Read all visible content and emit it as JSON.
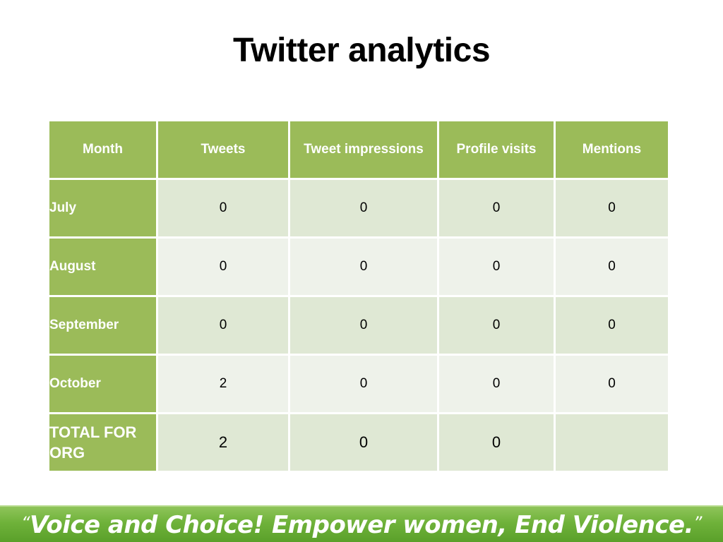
{
  "slide": {
    "title": "Twitter analytics",
    "footer": {
      "open_quote": "“",
      "text": "Voice and Choice! Empower women, End Violence.",
      "close_quote": "”"
    }
  },
  "table": {
    "headers": [
      "Month",
      "Tweets",
      "Tweet impressions",
      "Profile visits",
      "Mentions"
    ],
    "rows": [
      {
        "month": "July",
        "tweets": "0",
        "impressions": "0",
        "profile_visits": "0",
        "mentions": "0"
      },
      {
        "month": "August",
        "tweets": "0",
        "impressions": "0",
        "profile_visits": "0",
        "mentions": "0"
      },
      {
        "month": "September",
        "tweets": "0",
        "impressions": "0",
        "profile_visits": "0",
        "mentions": "0"
      },
      {
        "month": "October",
        "tweets": "2",
        "impressions": "0",
        "profile_visits": "0",
        "mentions": "0"
      },
      {
        "month": "TOTAL FOR ORG",
        "tweets": "2",
        "impressions": "0",
        "profile_visits": "0",
        "mentions": ""
      }
    ]
  },
  "colors": {
    "header_green": "#9bbb59",
    "row_band_dark": "#dfe8d4",
    "row_band_light": "#eef2ea",
    "footer_green": "#6fb23a"
  }
}
